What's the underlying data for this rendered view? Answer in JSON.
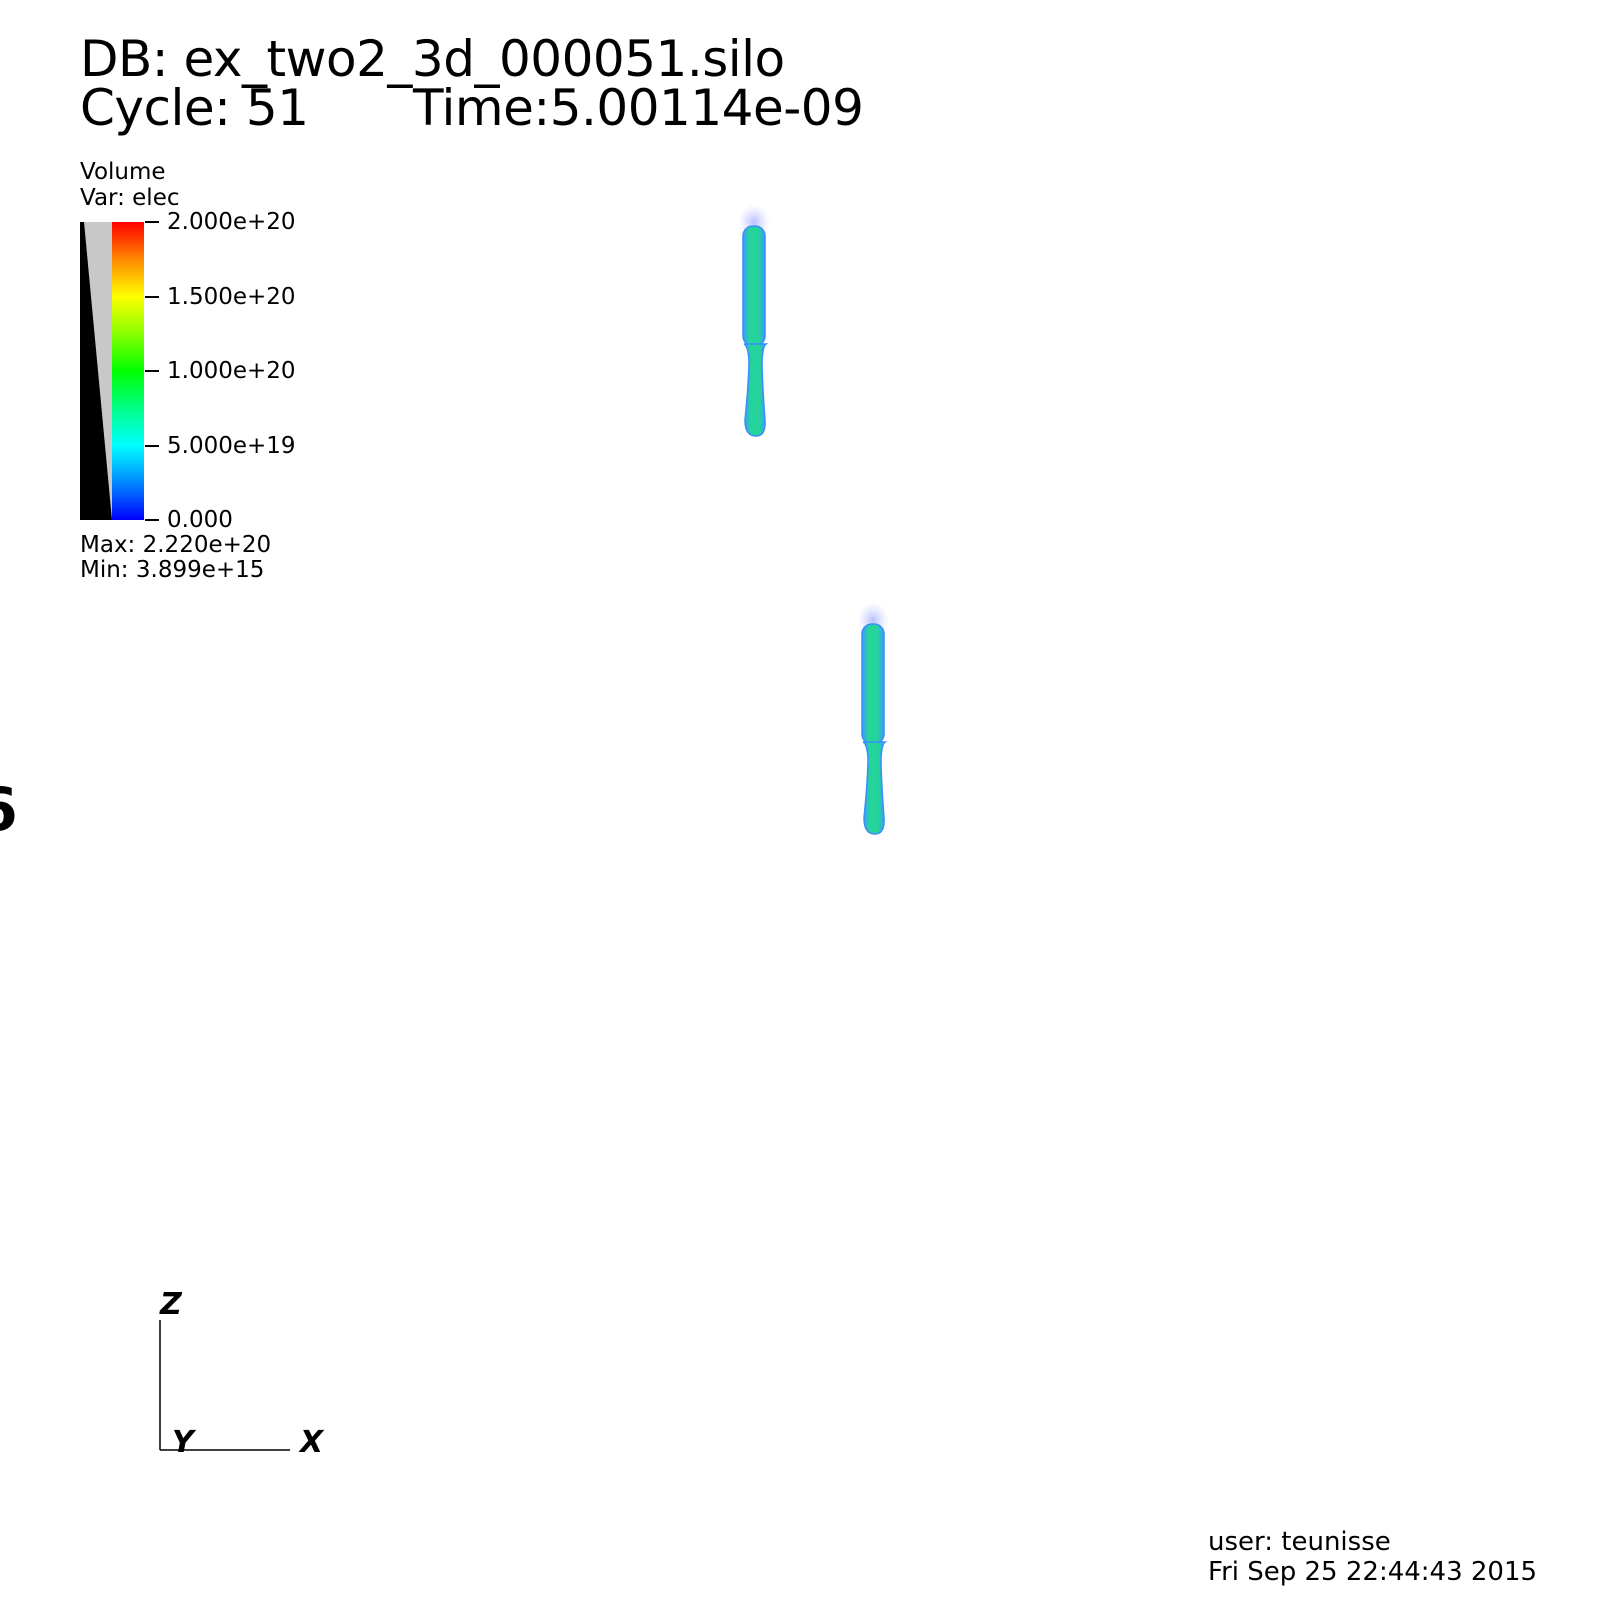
{
  "header": {
    "db_line": "DB: ex_two2_3d_000051.silo",
    "cycle": "Cycle: 51",
    "time": "Time:5.00114e-09"
  },
  "legend": {
    "plot_type": "Volume",
    "var": "Var: elec",
    "ticks": [
      "2.000e+20",
      "1.500e+20",
      "1.000e+20",
      "5.000e+19",
      "0.000"
    ],
    "max": "Max:  2.220e+20",
    "min": "Min:  3.899e+15",
    "colormap": [
      "#ff0000",
      "#ff8800",
      "#ffff00",
      "#88ff00",
      "#00ff00",
      "#00ff88",
      "#00ffff",
      "#0088ff",
      "#0000ff"
    ]
  },
  "axes": {
    "z": "Z",
    "y": "Y",
    "x": "X"
  },
  "footer": {
    "user": "user: teunisse",
    "date": "Fri Sep 25 22:44:43 2015"
  },
  "colors": {
    "streamer_core": "#22d890",
    "streamer_edge": "#3aa0ff",
    "streamer_glow": "#aab0ff"
  }
}
